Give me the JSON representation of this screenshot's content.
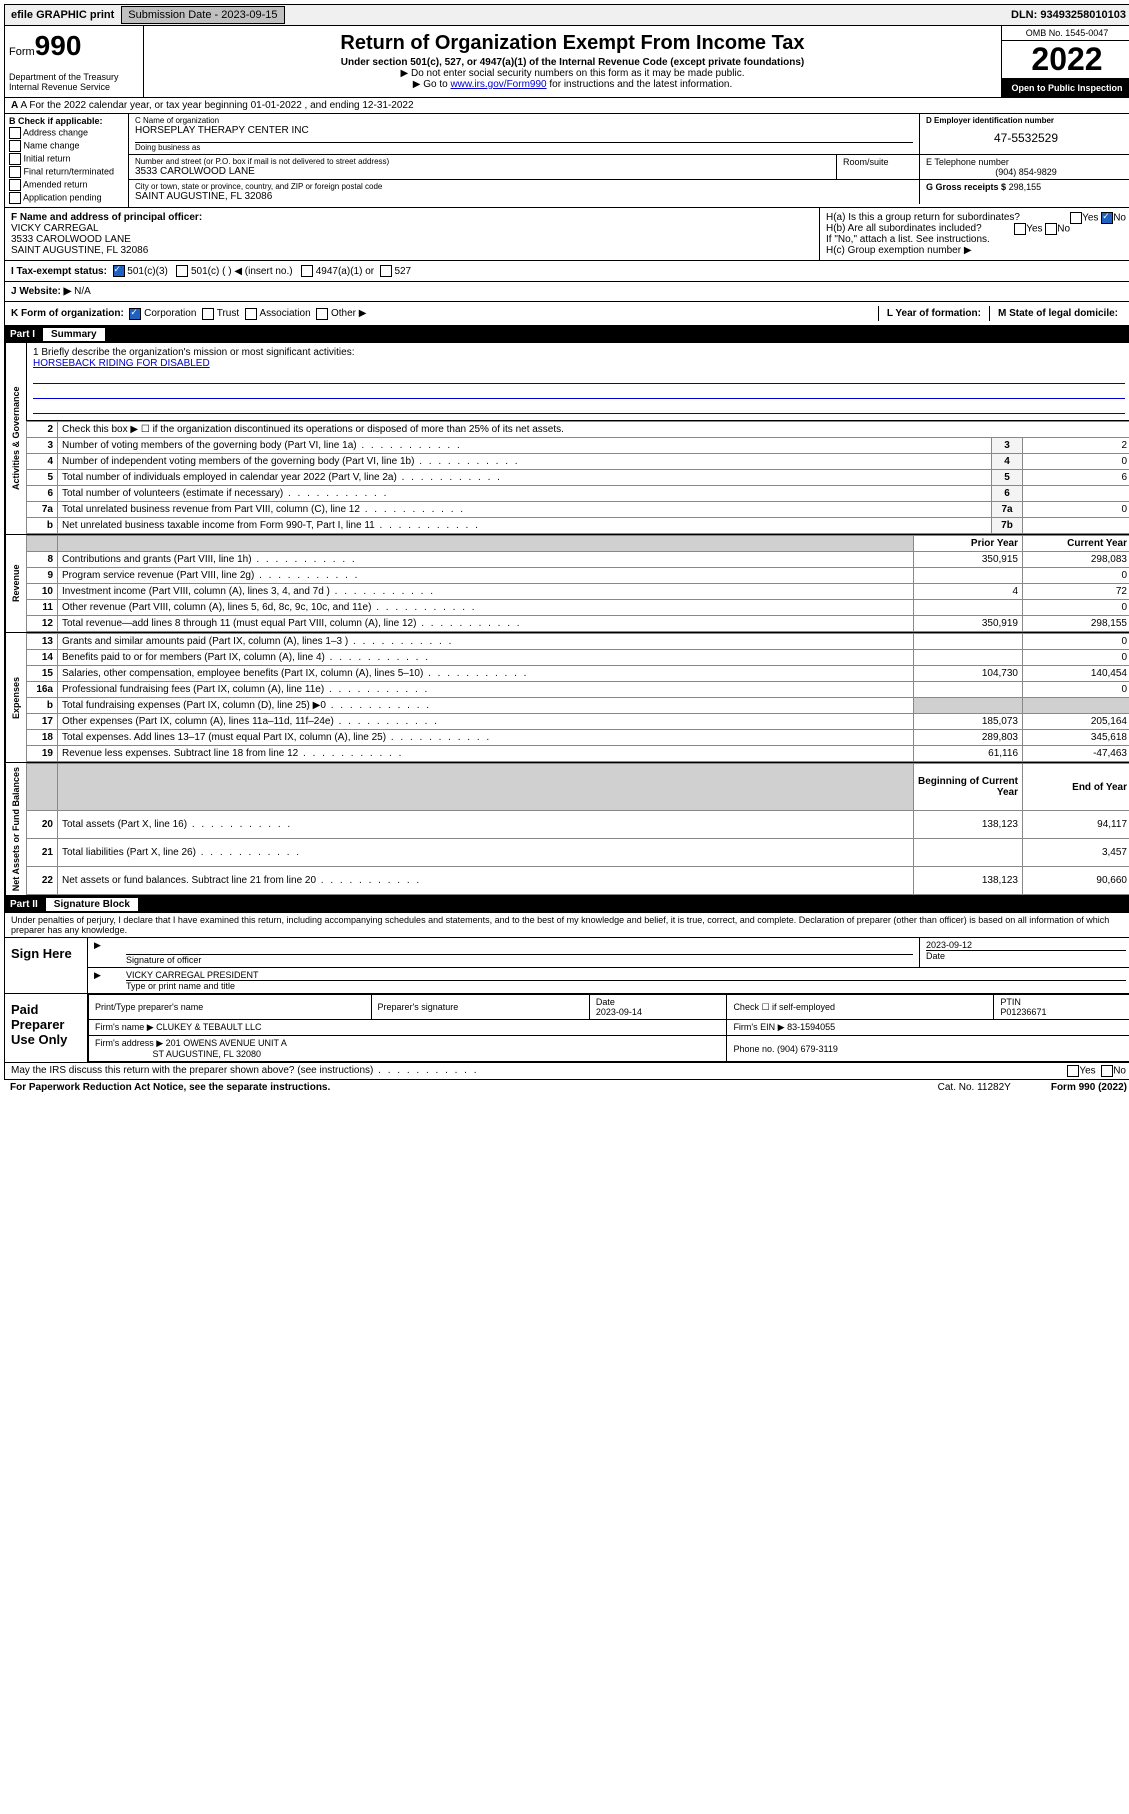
{
  "top": {
    "efile": "efile GRAPHIC print",
    "submission_label": "Submission Date - 2023-09-15",
    "dln": "DLN: 93493258010103"
  },
  "header": {
    "form_word": "Form",
    "form_num": "990",
    "title": "Return of Organization Exempt From Income Tax",
    "sub": "Under section 501(c), 527, or 4947(a)(1) of the Internal Revenue Code (except private foundations)",
    "note1": "▶ Do not enter social security numbers on this form as it may be made public.",
    "note2_pre": "▶ Go to ",
    "note2_link": "www.irs.gov/Form990",
    "note2_post": " for instructions and the latest information.",
    "dept": "Department of the Treasury Internal Revenue Service",
    "omb": "OMB No. 1545-0047",
    "year": "2022",
    "open": "Open to Public Inspection"
  },
  "row_a": "A For the 2022 calendar year, or tax year beginning 01-01-2022    , and ending 12-31-2022",
  "box_b": {
    "title": "B Check if applicable:",
    "opts": [
      "Address change",
      "Name change",
      "Initial return",
      "Final return/terminated",
      "Amended return",
      "Application pending"
    ]
  },
  "box_c": {
    "name_label": "C Name of organization",
    "name": "HORSEPLAY THERAPY CENTER INC",
    "dba_label": "Doing business as",
    "addr_label": "Number and street (or P.O. box if mail is not delivered to street address)",
    "room_label": "Room/suite",
    "addr": "3533 CAROLWOOD LANE",
    "city_label": "City or town, state or province, country, and ZIP or foreign postal code",
    "city": "SAINT AUGUSTINE, FL  32086"
  },
  "box_d": {
    "label": "D Employer identification number",
    "ein": "47-5532529"
  },
  "box_e": {
    "label": "E Telephone number",
    "phone": "(904) 854-9829"
  },
  "box_g": {
    "label": "G Gross receipts $",
    "val": "298,155"
  },
  "box_f": {
    "label": "F  Name and address of principal officer:",
    "name": "VICKY CARREGAL",
    "addr1": "3533 CAROLWOOD LANE",
    "addr2": "SAINT AUGUSTINE, FL  32086"
  },
  "box_h": {
    "ha": "H(a)  Is this a group return for subordinates?",
    "hb": "H(b)  Are all subordinates included?",
    "hb_note": "If \"No,\" attach a list. See instructions.",
    "hc": "H(c)  Group exemption number ▶",
    "yes": "Yes",
    "no": "No"
  },
  "tax_status": {
    "label": "I   Tax-exempt status:",
    "o1": "501(c)(3)",
    "o2": "501(c) (   ) ◀ (insert no.)",
    "o3": "4947(a)(1) or",
    "o4": "527"
  },
  "website": {
    "label": "J   Website: ▶",
    "val": "N/A"
  },
  "k_row": {
    "label": "K Form of organization:",
    "corp": "Corporation",
    "trust": "Trust",
    "assoc": "Association",
    "other": "Other ▶",
    "l": "L Year of formation:",
    "m": "M State of legal domicile:"
  },
  "part1": {
    "title": "Part I",
    "name": "Summary"
  },
  "mission": {
    "q": "1   Briefly describe the organization's mission or most significant activities:",
    "a": "HORSEBACK RIDING FOR DISABLED"
  },
  "gov_rows": [
    {
      "n": "2",
      "t": "Check this box ▶ ☐  if the organization discontinued its operations or disposed of more than 25% of its net assets."
    },
    {
      "n": "3",
      "t": "Number of voting members of the governing body (Part VI, line 1a)",
      "box": "3",
      "v": "2"
    },
    {
      "n": "4",
      "t": "Number of independent voting members of the governing body (Part VI, line 1b)",
      "box": "4",
      "v": "0"
    },
    {
      "n": "5",
      "t": "Total number of individuals employed in calendar year 2022 (Part V, line 2a)",
      "box": "5",
      "v": "6"
    },
    {
      "n": "6",
      "t": "Total number of volunteers (estimate if necessary)",
      "box": "6",
      "v": ""
    },
    {
      "n": "7a",
      "t": "Total unrelated business revenue from Part VIII, column (C), line 12",
      "box": "7a",
      "v": "0"
    },
    {
      "n": "b",
      "t": "Net unrelated business taxable income from Form 990-T, Part I, line 11",
      "box": "7b",
      "v": ""
    }
  ],
  "col_hdr": {
    "prior": "Prior Year",
    "current": "Current Year"
  },
  "rev_rows": [
    {
      "n": "8",
      "t": "Contributions and grants (Part VIII, line 1h)",
      "p": "350,915",
      "c": "298,083"
    },
    {
      "n": "9",
      "t": "Program service revenue (Part VIII, line 2g)",
      "p": "",
      "c": "0"
    },
    {
      "n": "10",
      "t": "Investment income (Part VIII, column (A), lines 3, 4, and 7d )",
      "p": "4",
      "c": "72"
    },
    {
      "n": "11",
      "t": "Other revenue (Part VIII, column (A), lines 5, 6d, 8c, 9c, 10c, and 11e)",
      "p": "",
      "c": "0"
    },
    {
      "n": "12",
      "t": "Total revenue—add lines 8 through 11 (must equal Part VIII, column (A), line 12)",
      "p": "350,919",
      "c": "298,155"
    }
  ],
  "exp_rows": [
    {
      "n": "13",
      "t": "Grants and similar amounts paid (Part IX, column (A), lines 1–3 )",
      "p": "",
      "c": "0"
    },
    {
      "n": "14",
      "t": "Benefits paid to or for members (Part IX, column (A), line 4)",
      "p": "",
      "c": "0"
    },
    {
      "n": "15",
      "t": "Salaries, other compensation, employee benefits (Part IX, column (A), lines 5–10)",
      "p": "104,730",
      "c": "140,454"
    },
    {
      "n": "16a",
      "t": "Professional fundraising fees (Part IX, column (A), line 11e)",
      "p": "",
      "c": "0"
    },
    {
      "n": "b",
      "t": "Total fundraising expenses (Part IX, column (D), line 25) ▶0",
      "p": "grey",
      "c": "grey"
    },
    {
      "n": "17",
      "t": "Other expenses (Part IX, column (A), lines 11a–11d, 11f–24e)",
      "p": "185,073",
      "c": "205,164"
    },
    {
      "n": "18",
      "t": "Total expenses. Add lines 13–17 (must equal Part IX, column (A), line 25)",
      "p": "289,803",
      "c": "345,618"
    },
    {
      "n": "19",
      "t": "Revenue less expenses. Subtract line 18 from line 12",
      "p": "61,116",
      "c": "-47,463"
    }
  ],
  "net_hdr": {
    "beg": "Beginning of Current Year",
    "end": "End of Year"
  },
  "net_rows": [
    {
      "n": "20",
      "t": "Total assets (Part X, line 16)",
      "p": "138,123",
      "c": "94,117"
    },
    {
      "n": "21",
      "t": "Total liabilities (Part X, line 26)",
      "p": "",
      "c": "3,457"
    },
    {
      "n": "22",
      "t": "Net assets or fund balances. Subtract line 21 from line 20",
      "p": "138,123",
      "c": "90,660"
    }
  ],
  "side_tabs": {
    "gov": "Activities & Governance",
    "rev": "Revenue",
    "exp": "Expenses",
    "net": "Net Assets or Fund Balances"
  },
  "part2": {
    "title": "Part II",
    "name": "Signature Block"
  },
  "sig": {
    "decl": "Under penalties of perjury, I declare that I have examined this return, including accompanying schedules and statements, and to the best of my knowledge and belief, it is true, correct, and complete. Declaration of preparer (other than officer) is based on all information of which preparer has any knowledge.",
    "sign_here": "Sign Here",
    "sig_officer": "Signature of officer",
    "date": "Date",
    "date_val": "2023-09-12",
    "name_title": "VICKY CARREGAL  PRESIDENT",
    "type_name": "Type or print name and title"
  },
  "prep": {
    "title": "Paid Preparer Use Only",
    "h1": "Print/Type preparer's name",
    "h2": "Preparer's signature",
    "h3": "Date",
    "h3v": "2023-09-14",
    "h4": "Check ☐ if self-employed",
    "h5": "PTIN",
    "h5v": "P01236671",
    "firm_name_l": "Firm's name    ▶",
    "firm_name": "CLUKEY & TEBAULT LLC",
    "firm_ein_l": "Firm's EIN ▶",
    "firm_ein": "83-1594055",
    "firm_addr_l": "Firm's address ▶",
    "firm_addr1": "201 OWENS AVENUE UNIT A",
    "firm_addr2": "ST AUGUSTINE, FL  32080",
    "phone_l": "Phone no.",
    "phone": "(904) 679-3119"
  },
  "discuss": "May the IRS discuss this return with the preparer shown above? (see instructions)",
  "footer": {
    "left": "For Paperwork Reduction Act Notice, see the separate instructions.",
    "mid": "Cat. No. 11282Y",
    "right": "Form 990 (2022)"
  }
}
